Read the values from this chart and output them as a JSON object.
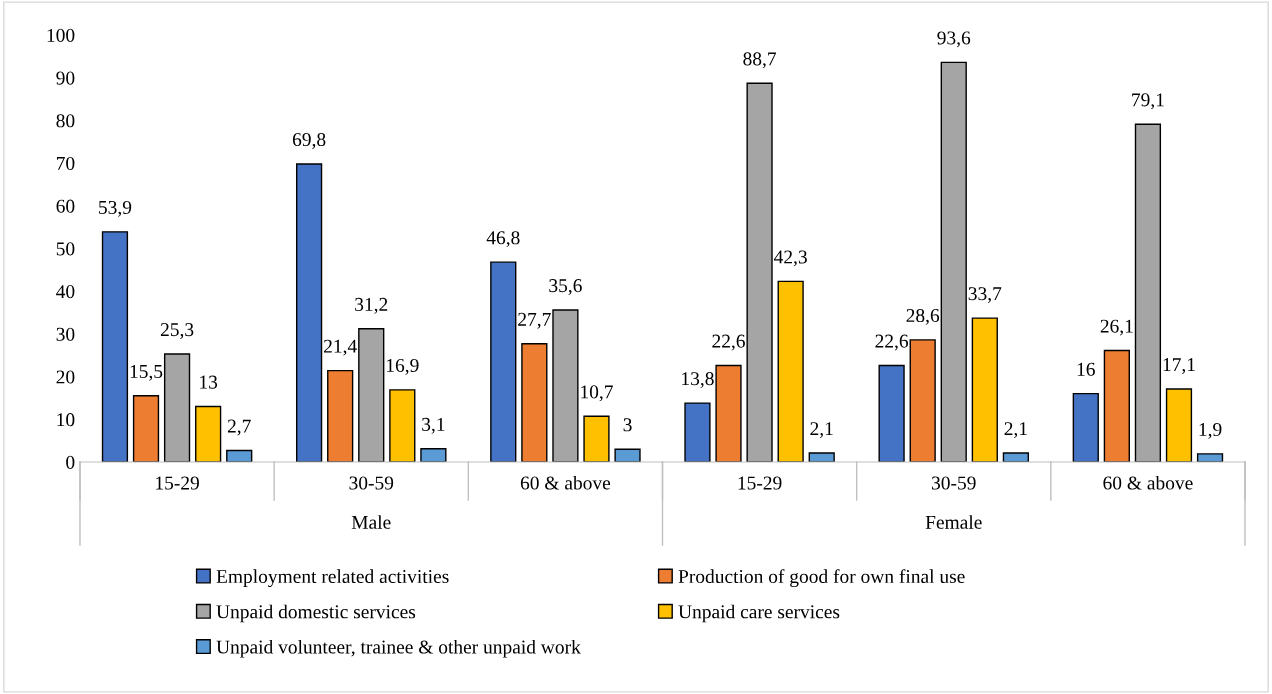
{
  "chart_data": {
    "type": "bar",
    "categories": [
      "15-29",
      "30-59",
      "60 & above",
      "15-29",
      "30-59",
      "60 & above"
    ],
    "annotations": [
      "Male",
      "Female"
    ],
    "series": [
      {
        "name": "Employment related activities",
        "color": "#4472c4",
        "values": [
          53.9,
          69.8,
          46.8,
          13.8,
          22.6,
          16
        ],
        "value_labels": [
          "53,9",
          "69,8",
          "46,8",
          "13,8",
          "22,6",
          "16"
        ]
      },
      {
        "name": "Production of good for own final use",
        "color": "#ed7d31",
        "values": [
          15.5,
          21.4,
          27.7,
          22.6,
          28.6,
          26.1
        ],
        "value_labels": [
          "15,5",
          "21,4",
          "27,7",
          "22,6",
          "28,6",
          "26,1"
        ]
      },
      {
        "name": "Unpaid domestic services",
        "color": "#a5a5a5",
        "values": [
          25.3,
          31.2,
          35.6,
          88.7,
          93.6,
          79.1
        ],
        "value_labels": [
          "25,3",
          "31,2",
          "35,6",
          "88,7",
          "93,6",
          "79,1"
        ]
      },
      {
        "name": "Unpaid care services",
        "color": "#ffc000",
        "values": [
          13,
          16.9,
          10.7,
          42.3,
          33.7,
          17.1
        ],
        "value_labels": [
          "13",
          "16,9",
          "10,7",
          "42,3",
          "33,7",
          "17,1"
        ]
      },
      {
        "name": "Unpaid volunteer, trainee & other unpaid work",
        "color": "#5b9bd5",
        "values": [
          2.7,
          3.1,
          3,
          2.1,
          2.1,
          1.9
        ],
        "value_labels": [
          "2,7",
          "3,1",
          "3",
          "2,1",
          "2,1",
          "1,9"
        ]
      }
    ],
    "ylim": [
      0,
      100
    ],
    "yticks": [
      0,
      10,
      20,
      30,
      40,
      50,
      60,
      70,
      80,
      90,
      100
    ],
    "grid": false,
    "legend": "bottom"
  }
}
